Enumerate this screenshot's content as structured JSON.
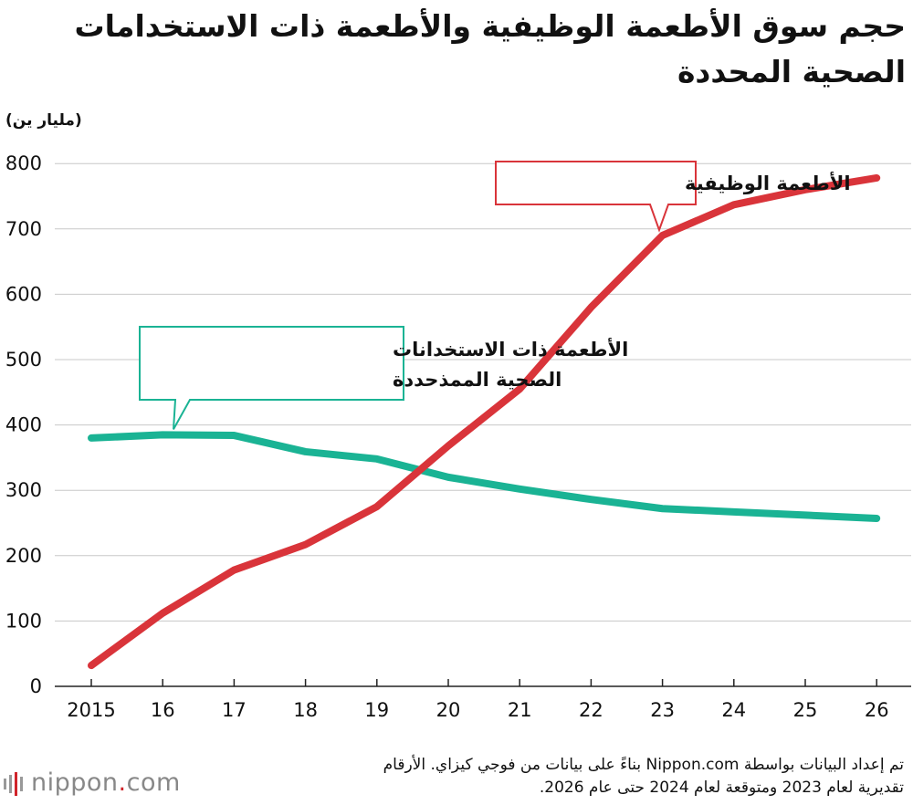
{
  "chart_data": {
    "type": "line",
    "title": "حجم سوق الأطعمة الوظيفية والأطعمة ذات الاستخدامات الصحية المحددة",
    "unit_label": "(مليار ين)",
    "x": [
      "2015",
      "16",
      "17",
      "18",
      "19",
      "20",
      "21",
      "22",
      "23",
      "24",
      "25",
      "26"
    ],
    "ylim": [
      0,
      800
    ],
    "yticks": [
      "0",
      "100",
      "200",
      "300",
      "400",
      "500",
      "600",
      "700",
      "800"
    ],
    "grid": true,
    "series": [
      {
        "name": "الأطعمة الوظيفية",
        "color": "#d9343a",
        "values": [
          32,
          112,
          178,
          217,
          275,
          368,
          455,
          580,
          690,
          737,
          760,
          778
        ]
      },
      {
        "name_lines": [
          "الأطعمة ذات الاستخدانات",
          "الصحية الممذحددة"
        ],
        "color": "#1ab394",
        "values": [
          380,
          385,
          384,
          359,
          348,
          320,
          302,
          286,
          272,
          267,
          262,
          257
        ]
      }
    ]
  },
  "source": {
    "line1": "تم إعداد البيانات بواسطة Nippon.com بناءً على بيانات من فوجي كيزاي. الأرقام",
    "line2": "تقديرية لعام 2023 ومتوقعة لعام 2024 حتى عام 2026."
  },
  "logo": {
    "name": "nippon",
    "dot": ".",
    "suffix": "com"
  }
}
